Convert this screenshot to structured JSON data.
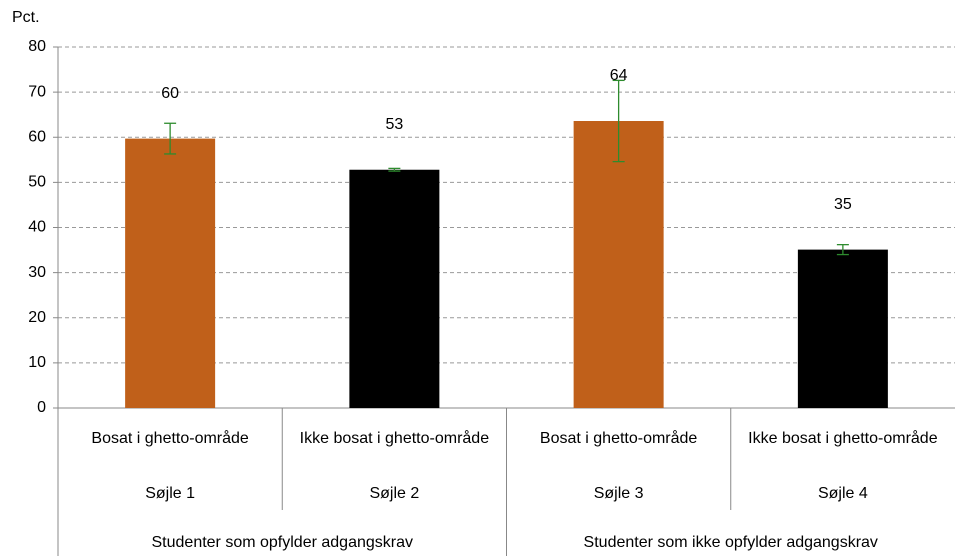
{
  "chart_data": {
    "type": "bar",
    "y_axis_label": "Pct.",
    "categories": [
      "Bosat i ghetto-område",
      "Ikke bosat i ghetto-område",
      "Bosat i ghetto-område",
      "Ikke bosat i ghetto-område"
    ],
    "subcategories": [
      "Søjle 1",
      "Søjle 2",
      "Søjle 3",
      "Søjle 4"
    ],
    "groups": [
      "Studenter som opfylder adgangskrav",
      "Studenter som ikke opfylder adgangskrav"
    ],
    "values": [
      59.7,
      52.8,
      63.6,
      35.1
    ],
    "value_labels": [
      "60",
      "53",
      "64",
      "35"
    ],
    "errors": [
      3.4,
      0.3,
      9.0,
      1.1
    ],
    "colors": [
      "#c0601a",
      "#000000",
      "#c0601a",
      "#000000"
    ],
    "error_color": "#2e8b2e",
    "ylim": [
      0,
      80
    ],
    "yticks": [
      0,
      10,
      20,
      30,
      40,
      50,
      60,
      70,
      80
    ],
    "grid": true
  }
}
